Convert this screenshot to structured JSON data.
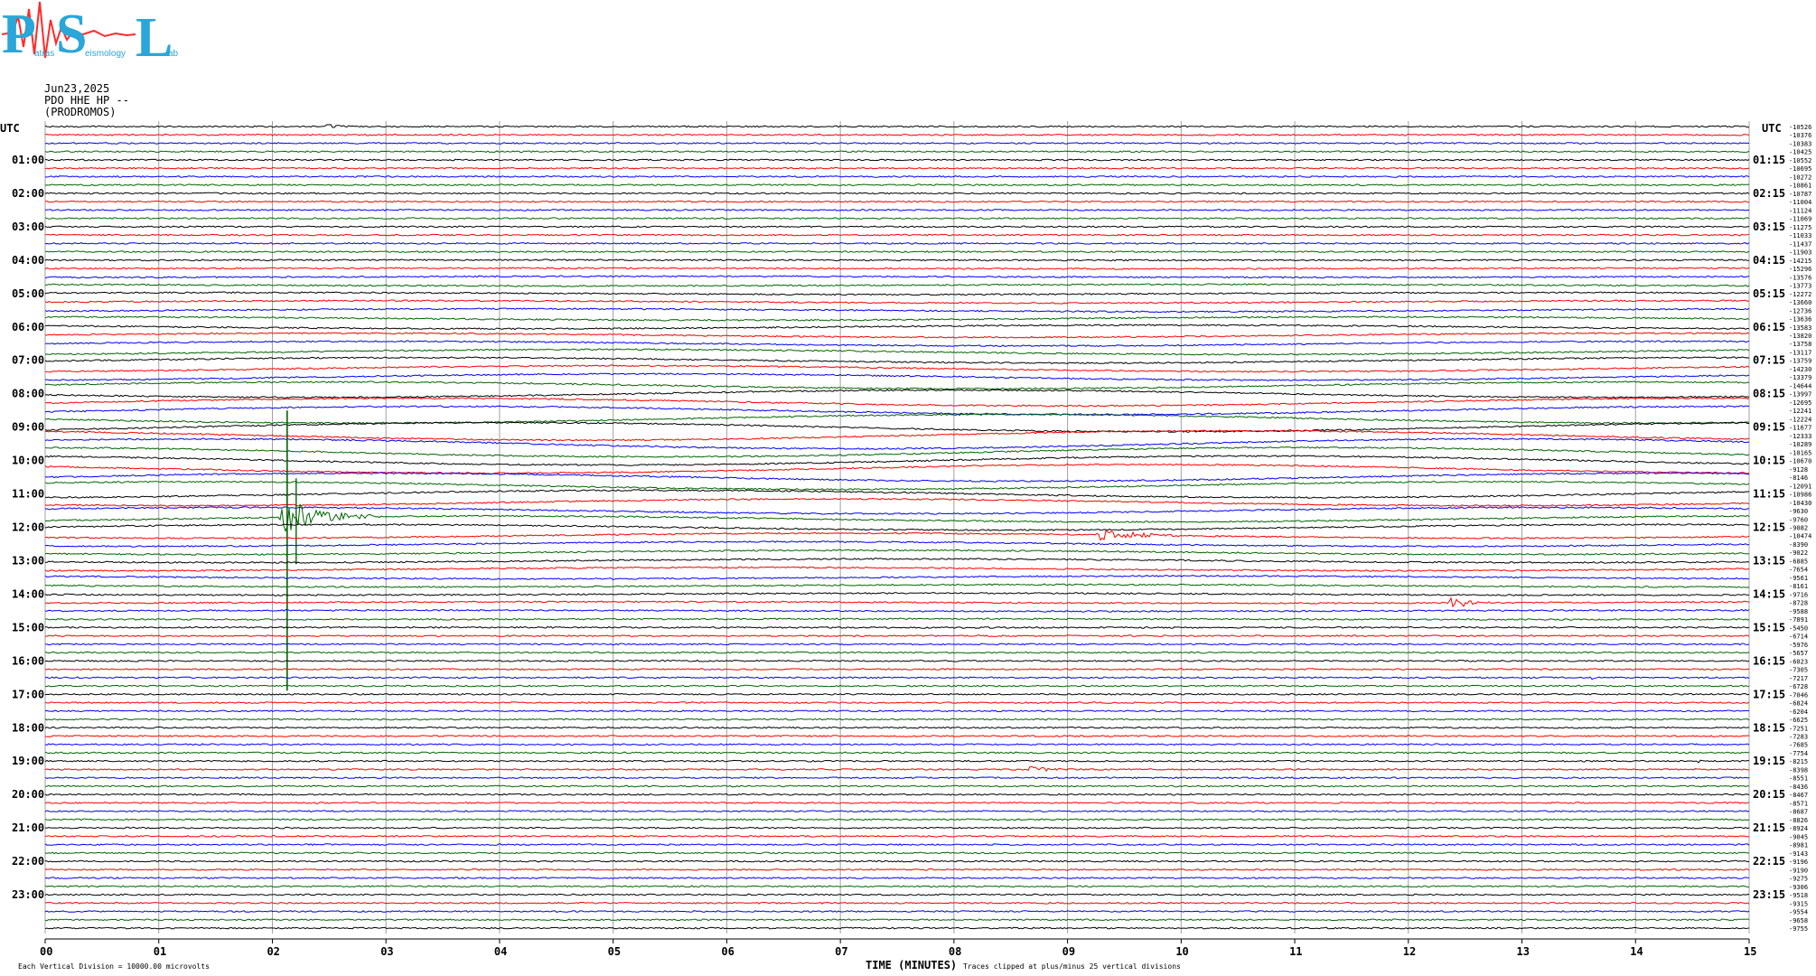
{
  "logo": {
    "letters": [
      "P",
      "S",
      "L"
    ],
    "words": [
      "atras",
      "eismology",
      "ab"
    ],
    "accent_blue": "#2aa6d8",
    "accent_red": "#ff2a2a"
  },
  "header": {
    "date": "Jun23,2025",
    "station": "PDO HHE HP --",
    "location": "(PRODROMOS)"
  },
  "chart_data": {
    "type": "line",
    "title": "",
    "xlabel": "TIME (MINUTES)",
    "ylabel": "",
    "left_axis_title": "UTC",
    "right_axis_title": "UTC",
    "x_ticks": [
      "00",
      "01",
      "02",
      "03",
      "04",
      "05",
      "06",
      "07",
      "08",
      "09",
      "10",
      "11",
      "12",
      "13",
      "14",
      "15"
    ],
    "xlim": [
      0,
      15
    ],
    "left_hour_labels": [
      "01:00",
      "02:00",
      "03:00",
      "04:00",
      "05:00",
      "06:00",
      "07:00",
      "08:00",
      "09:00",
      "10:00",
      "11:00",
      "12:00",
      "13:00",
      "14:00",
      "15:00",
      "16:00",
      "17:00",
      "18:00",
      "19:00",
      "20:00",
      "21:00",
      "22:00",
      "23:00"
    ],
    "right_hour_labels": [
      "01:15",
      "02:15",
      "03:15",
      "04:15",
      "05:15",
      "06:15",
      "07:15",
      "08:15",
      "09:15",
      "10:15",
      "11:15",
      "12:15",
      "13:15",
      "14:15",
      "15:15",
      "16:15",
      "17:15",
      "18:15",
      "19:15",
      "20:15",
      "21:15",
      "22:15",
      "23:15"
    ],
    "trace_offsets": [
      "-10526",
      "-10376",
      "-10383",
      "-10425",
      "-10552",
      "-10695",
      "-10272",
      "-10861",
      "-10787",
      "-11004",
      "-11124",
      "-11069",
      "-11275",
      "-11033",
      "-11437",
      "-11903",
      "-14215",
      "-15296",
      "-13576",
      "-13773",
      "-12272",
      "-13660",
      "-12736",
      "-13636",
      "-13583",
      "-13820",
      "-13758",
      "-13117",
      "-13759",
      "-14230",
      "-13379",
      "-14644",
      "-13997",
      "-12695",
      "-12241",
      "-12224",
      "-11677",
      "-12333",
      "-10289",
      "-10165",
      "-10670",
      "-9128",
      "-8146",
      "-12091",
      "-10986",
      "-10430",
      "-9630",
      "-9760",
      "-9082",
      "-10474",
      "-8390",
      "-9022",
      "-6885",
      "-7654",
      "-9561",
      "-8161",
      "-9716",
      "-8728",
      "-9588",
      "-7891",
      "-5450",
      "-6714",
      "-5976",
      "-5657",
      "-6023",
      "-7305",
      "-7217",
      "-6728",
      "-7046",
      "-6824",
      "-6204",
      "-6625",
      "-7251",
      "-7283",
      "-7685",
      "-7754",
      "-8215",
      "-8398",
      "-8551",
      "-8436",
      "-8467",
      "-8571",
      "-8687",
      "-8826",
      "-8924",
      "-9045",
      "-8981",
      "-9143",
      "-9196",
      "-9190",
      "-9275",
      "-9306",
      "-9518",
      "-9315",
      "-9554",
      "-9658",
      "-9755"
    ],
    "trace_colors": [
      "#000000",
      "#ff0000",
      "#0000ff",
      "#006400"
    ],
    "traces_per_hour": 4,
    "minutes_per_trace": 15,
    "events": [
      {
        "trace": 0,
        "minute": 2.45,
        "duration": 0.35,
        "amplitude": 4
      },
      {
        "trace": 47,
        "minute": 2.05,
        "duration": 0.9,
        "amplitude": 26,
        "peak": 120
      },
      {
        "trace": 49,
        "minute": 9.25,
        "duration": 0.8,
        "amplitude": 10
      },
      {
        "trace": 57,
        "minute": 12.35,
        "duration": 0.5,
        "amplitude": 7
      },
      {
        "trace": 66,
        "minute": 13.6,
        "duration": 0.1,
        "amplitude": 3
      },
      {
        "trace": 77,
        "minute": 8.65,
        "duration": 0.35,
        "amplitude": 6
      },
      {
        "trace": 9,
        "minute": 10.4,
        "duration": 0.1,
        "amplitude": 2
      },
      {
        "trace": 76,
        "minute": 14.55,
        "duration": 0.1,
        "amplitude": 3
      }
    ],
    "footer_left": "Each Vertical Division = 10000.00 microvolts",
    "footer_right": "Traces clipped at plus/minus 25 vertical divisions"
  }
}
